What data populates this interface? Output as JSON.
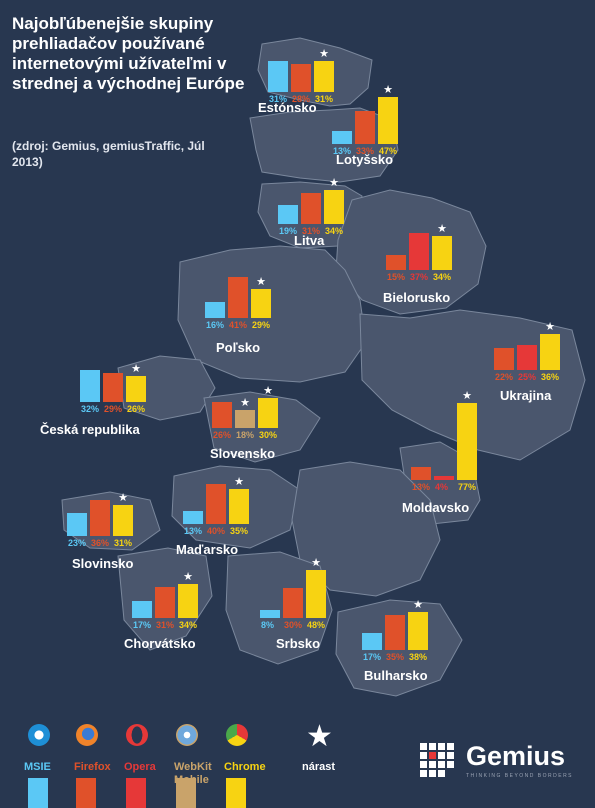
{
  "title": "Najobľúbenejšie skupiny prehliadačov používané internetovými užívateľmi v strednej a východnej Európe",
  "source": "(zdroj: Gemius, gemiusTraffic, Júl 2013)",
  "colors": {
    "background": "#283750",
    "land": "#4a566d",
    "MSIE": "#5bc8f5",
    "Firefox": "#e0512a",
    "Opera": "#e63838",
    "WebKit Mobile": "#c9a36a",
    "Chrome": "#f7d312",
    "text": "#ffffff"
  },
  "legend": [
    {
      "key": "MSIE",
      "label": "MSIE",
      "icon": "ie-icon"
    },
    {
      "key": "Firefox",
      "label": "Firefox",
      "icon": "firefox-icon"
    },
    {
      "key": "Opera",
      "label": "Opera",
      "icon": "opera-icon"
    },
    {
      "key": "WebKit Mobile",
      "label": "WebKit Mobile",
      "icon": "webkit-icon"
    },
    {
      "key": "Chrome",
      "label": "Chrome",
      "icon": "chrome-icon"
    },
    {
      "key": "growth",
      "label": "nárast",
      "icon": "star-icon"
    }
  ],
  "brand": {
    "name": "Gemius",
    "tagline": "THINKING  BEYOND  BORDERS"
  },
  "chart_data": {
    "type": "bar",
    "unit": "%",
    "countries": [
      {
        "name": "Estónsko",
        "series": [
          {
            "name": "MSIE",
            "value": 31,
            "star": false
          },
          {
            "name": "Firefox",
            "value": 28,
            "star": false
          },
          {
            "name": "Chrome",
            "value": 31,
            "star": true
          }
        ]
      },
      {
        "name": "Lotyšsko",
        "series": [
          {
            "name": "MSIE",
            "value": 13,
            "star": false
          },
          {
            "name": "Firefox",
            "value": 33,
            "star": false
          },
          {
            "name": "Chrome",
            "value": 47,
            "star": true
          }
        ]
      },
      {
        "name": "Litva",
        "series": [
          {
            "name": "MSIE",
            "value": 19,
            "star": false
          },
          {
            "name": "Firefox",
            "value": 31,
            "star": false
          },
          {
            "name": "Chrome",
            "value": 34,
            "star": true
          }
        ]
      },
      {
        "name": "Bielorusko",
        "series": [
          {
            "name": "Firefox",
            "value": 15,
            "star": false
          },
          {
            "name": "Opera",
            "value": 37,
            "star": false
          },
          {
            "name": "Chrome",
            "value": 34,
            "star": true
          }
        ]
      },
      {
        "name": "Poľsko",
        "series": [
          {
            "name": "MSIE",
            "value": 16,
            "star": false
          },
          {
            "name": "Firefox",
            "value": 41,
            "star": false
          },
          {
            "name": "Chrome",
            "value": 29,
            "star": true
          }
        ]
      },
      {
        "name": "Ukrajina",
        "series": [
          {
            "name": "Firefox",
            "value": 22,
            "star": false
          },
          {
            "name": "Opera",
            "value": 25,
            "star": false
          },
          {
            "name": "Chrome",
            "value": 36,
            "star": true
          }
        ]
      },
      {
        "name": "Česká republika",
        "series": [
          {
            "name": "MSIE",
            "value": 32,
            "star": false
          },
          {
            "name": "Firefox",
            "value": 29,
            "star": false
          },
          {
            "name": "Chrome",
            "value": 26,
            "star": true
          }
        ]
      },
      {
        "name": "Slovensko",
        "series": [
          {
            "name": "Firefox",
            "value": 26,
            "star": false
          },
          {
            "name": "WebKit Mobile",
            "value": 18,
            "star": true
          },
          {
            "name": "Chrome",
            "value": 30,
            "star": true
          }
        ]
      },
      {
        "name": "Moldavsko",
        "series": [
          {
            "name": "Firefox",
            "value": 13,
            "star": false
          },
          {
            "name": "Opera",
            "value": 4,
            "star": false
          },
          {
            "name": "Chrome",
            "value": 77,
            "star": true
          }
        ]
      },
      {
        "name": "Slovinsko",
        "series": [
          {
            "name": "MSIE",
            "value": 23,
            "star": false
          },
          {
            "name": "Firefox",
            "value": 36,
            "star": false
          },
          {
            "name": "Chrome",
            "value": 31,
            "star": true
          }
        ]
      },
      {
        "name": "Maďarsko",
        "series": [
          {
            "name": "MSIE",
            "value": 13,
            "star": false
          },
          {
            "name": "Firefox",
            "value": 40,
            "star": false
          },
          {
            "name": "Chrome",
            "value": 35,
            "star": true
          }
        ]
      },
      {
        "name": "Chorvátsko",
        "series": [
          {
            "name": "MSIE",
            "value": 17,
            "star": false
          },
          {
            "name": "Firefox",
            "value": 31,
            "star": false
          },
          {
            "name": "Chrome",
            "value": 34,
            "star": true
          }
        ]
      },
      {
        "name": "Srbsko",
        "series": [
          {
            "name": "MSIE",
            "value": 8,
            "star": false
          },
          {
            "name": "Firefox",
            "value": 30,
            "star": false
          },
          {
            "name": "Chrome",
            "value": 48,
            "star": true
          }
        ]
      },
      {
        "name": "Bulharsko",
        "series": [
          {
            "name": "MSIE",
            "value": 17,
            "star": false
          },
          {
            "name": "Firefox",
            "value": 35,
            "star": false
          },
          {
            "name": "Chrome",
            "value": 38,
            "star": true
          }
        ]
      }
    ]
  }
}
